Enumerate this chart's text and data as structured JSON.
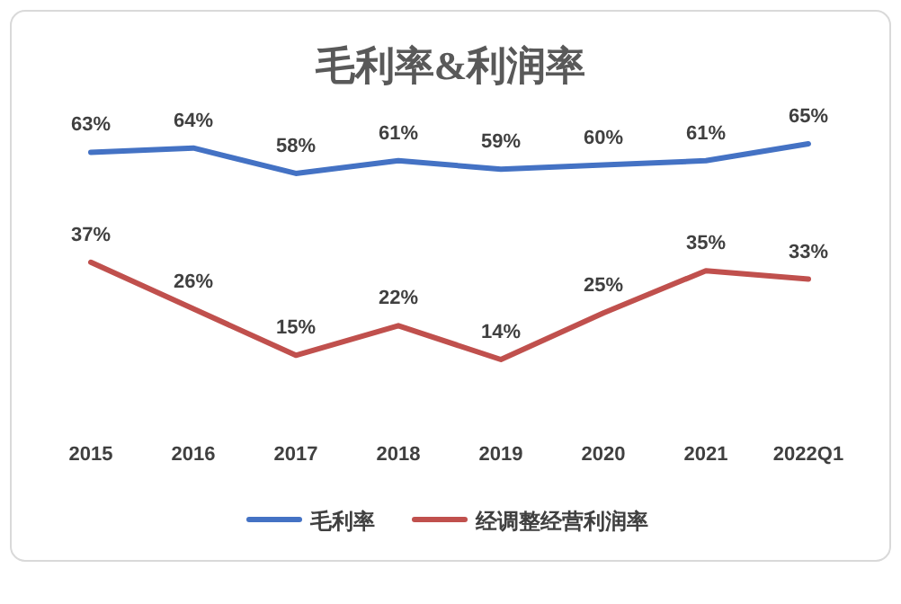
{
  "chart_data": {
    "type": "line",
    "title": "毛利率&利润率",
    "categories": [
      "2015",
      "2016",
      "2017",
      "2018",
      "2019",
      "2020",
      "2021",
      "2022Q1"
    ],
    "series": [
      {
        "name": "毛利率",
        "color": "#4472c4",
        "values": [
          63,
          64,
          58,
          61,
          59,
          60,
          61,
          65
        ],
        "value_labels": [
          "63%",
          "64%",
          "58%",
          "61%",
          "59%",
          "60%",
          "61%",
          "65%"
        ]
      },
      {
        "name": "经调整经营利润率",
        "color": "#c0504d",
        "values": [
          37,
          26,
          15,
          22,
          14,
          25,
          35,
          33
        ],
        "value_labels": [
          "37%",
          "26%",
          "15%",
          "22%",
          "14%",
          "25%",
          "35%",
          "33%"
        ]
      }
    ],
    "legend": "bottom",
    "grid": false,
    "marker": "none",
    "line_style": "solid"
  }
}
